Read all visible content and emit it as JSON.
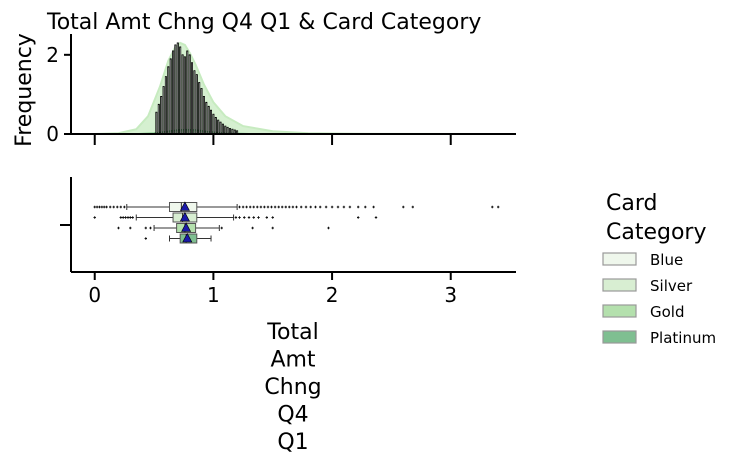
{
  "chart_data": {
    "type": "histogram_boxplot",
    "title": "Total Amt Chng Q4 Q1 & Card Category",
    "xlabel_lines": [
      "Total",
      "Amt",
      "Chng",
      "Q4",
      "Q1"
    ],
    "ylabel": "Frequency",
    "x_range": [
      -0.2,
      3.55
    ],
    "x_ticks": [
      0,
      1,
      2,
      3
    ],
    "hist_y_range": [
      0,
      2.45
    ],
    "hist_y_ticks": [
      0,
      2
    ],
    "legend": {
      "title_lines": [
        "Card",
        "Category"
      ],
      "placement": "right",
      "items": [
        "Blue",
        "Silver",
        "Gold",
        "Platinum"
      ]
    },
    "colors": {
      "Blue": "#eff7ec",
      "Silver": "#d8eed2",
      "Gold": "#b4e0ad",
      "Platinum": "#7fbf91",
      "mean_marker": "#1a1aa8",
      "hist_bar_edge": "#000000",
      "kde_total": "#c7ebc0",
      "kde_gold": "#5cb86a"
    },
    "histogram": {
      "bin_width": 0.01,
      "bars_x": [
        0.52,
        0.54,
        0.56,
        0.58,
        0.6,
        0.62,
        0.64,
        0.66,
        0.68,
        0.7,
        0.72,
        0.74,
        0.76,
        0.78,
        0.8,
        0.82,
        0.84,
        0.86,
        0.88,
        0.9,
        0.92,
        0.94,
        0.96,
        0.98,
        1.0,
        1.02,
        1.04,
        1.06,
        1.08,
        1.1,
        1.12,
        1.14,
        1.16,
        1.18,
        1.2
      ],
      "bars_y": [
        0.55,
        0.75,
        0.95,
        1.2,
        1.45,
        1.7,
        1.9,
        2.1,
        2.25,
        2.3,
        2.2,
        2.0,
        1.95,
        2.1,
        2.0,
        1.8,
        1.6,
        1.5,
        1.3,
        1.15,
        0.95,
        0.8,
        0.7,
        0.6,
        0.5,
        0.42,
        0.35,
        0.3,
        0.25,
        0.2,
        0.17,
        0.14,
        0.12,
        0.1,
        0.08
      ],
      "kde_blue": {
        "x": [
          0.0,
          0.2,
          0.35,
          0.45,
          0.55,
          0.62,
          0.68,
          0.72,
          0.76,
          0.8,
          0.85,
          0.92,
          1.0,
          1.1,
          1.25,
          1.5,
          1.8,
          2.2,
          3.4
        ],
        "y": [
          0.0,
          0.02,
          0.12,
          0.45,
          1.2,
          1.85,
          2.2,
          2.3,
          2.25,
          2.05,
          1.75,
          1.25,
          0.8,
          0.45,
          0.2,
          0.07,
          0.02,
          0.005,
          0.0
        ]
      },
      "kde_gold": {
        "x": [
          0.0,
          0.3,
          0.5,
          0.6,
          0.7,
          0.78,
          0.85,
          0.95,
          1.1,
          1.4,
          3.4
        ],
        "y": [
          0.0,
          0.0,
          0.02,
          0.06,
          0.1,
          0.11,
          0.1,
          0.06,
          0.02,
          0.0,
          0.0
        ]
      }
    },
    "boxplots": [
      {
        "category": "Blue",
        "whisker_low": 0.27,
        "q1": 0.63,
        "median": 0.73,
        "q3": 0.86,
        "whisker_high": 1.2,
        "mean": 0.76,
        "outliers": [
          0.0,
          0.02,
          0.04,
          0.06,
          0.08,
          0.1,
          0.13,
          0.16,
          0.19,
          0.22,
          0.25,
          1.22,
          1.25,
          1.28,
          1.31,
          1.34,
          1.37,
          1.4,
          1.43,
          1.46,
          1.49,
          1.52,
          1.55,
          1.58,
          1.61,
          1.64,
          1.67,
          1.7,
          1.74,
          1.78,
          1.82,
          1.86,
          1.9,
          1.95,
          2.0,
          2.05,
          2.1,
          2.15,
          2.22,
          2.28,
          2.35,
          2.6,
          2.68,
          3.35,
          3.4
        ]
      },
      {
        "category": "Silver",
        "whisker_low": 0.35,
        "q1": 0.66,
        "median": 0.74,
        "q3": 0.86,
        "whisker_high": 1.17,
        "mean": 0.76,
        "outliers": [
          0.0,
          0.22,
          0.24,
          0.26,
          0.28,
          0.3,
          0.32,
          1.19,
          1.22,
          1.26,
          1.3,
          1.34,
          1.38,
          1.45,
          1.5,
          2.22,
          2.37
        ]
      },
      {
        "category": "Gold",
        "whisker_low": 0.5,
        "q1": 0.69,
        "median": 0.76,
        "q3": 0.85,
        "whisker_high": 1.05,
        "mean": 0.77,
        "outliers": [
          0.2,
          0.3,
          0.43,
          0.47,
          1.07,
          1.33,
          1.5,
          1.97
        ]
      },
      {
        "category": "Platinum",
        "whisker_low": 0.63,
        "q1": 0.72,
        "median": 0.77,
        "q3": 0.86,
        "whisker_high": 0.98,
        "mean": 0.78,
        "outliers": [
          0.43
        ]
      }
    ]
  }
}
